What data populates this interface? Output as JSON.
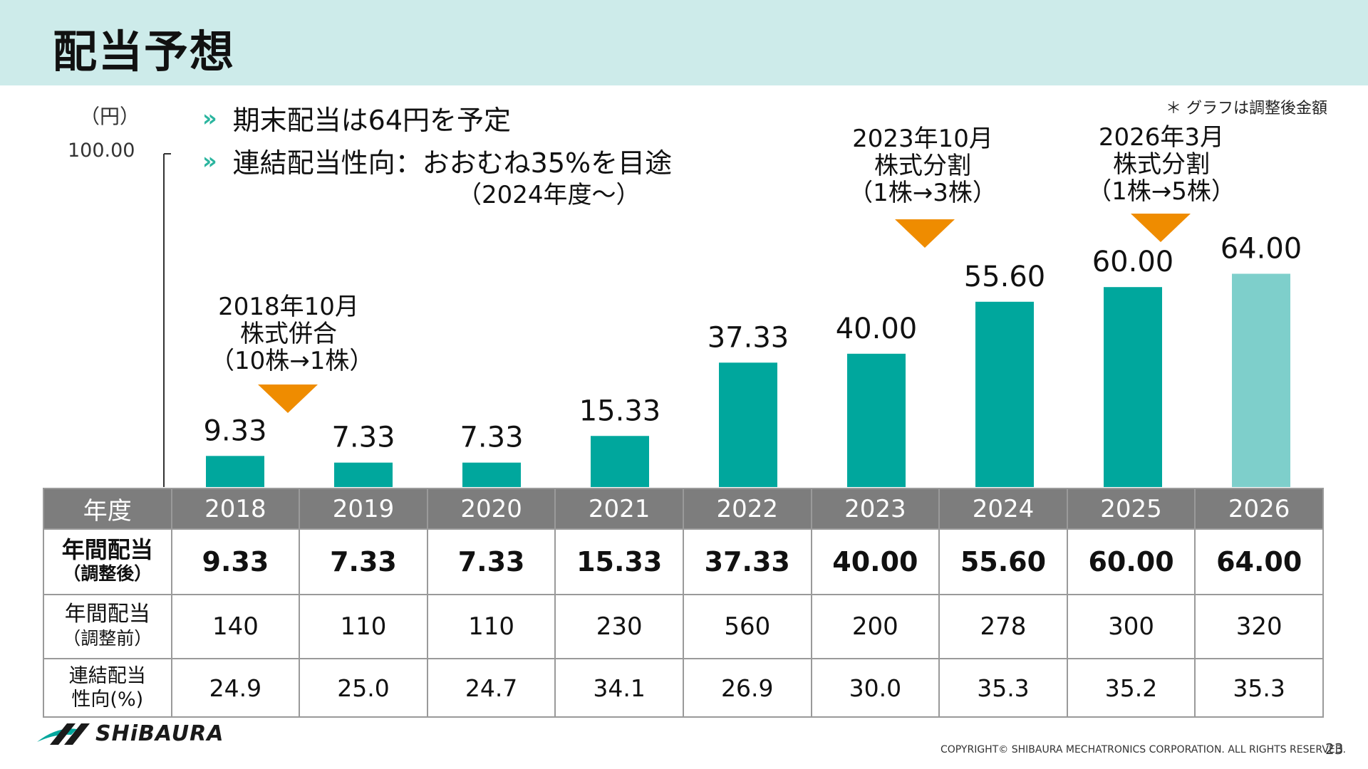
{
  "page": {
    "title": "配当予想",
    "unit": "（円）",
    "ymax_label": "100.00",
    "note": "＊ グラフは調整後金額",
    "bullets": [
      "期末配当は64円を予定",
      "連結配当性向：おおむね35%を目途"
    ],
    "bullet_sub": "（2024年度～）",
    "bullet_marker": "»",
    "annotations": [
      {
        "lines": [
          "2018年10月",
          "株式併合",
          "（10株→1株）"
        ]
      },
      {
        "lines": [
          "2023年10月",
          "株式分割",
          "（1株→3株）"
        ]
      },
      {
        "lines": [
          "2026年3月",
          "株式分割",
          "（1株→5株）"
        ]
      }
    ],
    "logo_text": "SHiBAURA",
    "copyright": "COPYRIGHT© SHIBAURA MECHATRONICS CORPORATION. ALL RIGHTS RESERVED.",
    "page_number": "23",
    "colors": {
      "bar": "#00a79d",
      "bar_forecast": "#7ecfcb",
      "marker": "#ef8c00",
      "header_bg": "#cdebea",
      "table_header": "#7d7d7d"
    }
  },
  "table": {
    "header_label": "年度",
    "row1_label": [
      "年間配当",
      "（調整後）"
    ],
    "row2_label": [
      "年間配当",
      "（調整前）"
    ],
    "row3_label": [
      "連結配当",
      "性向(%)"
    ],
    "row1_values": [
      "9.33",
      "7.33",
      "7.33",
      "15.33",
      "37.33",
      "40.00",
      "55.60",
      "60.00",
      "64.00"
    ],
    "row2_values": [
      "140",
      "110",
      "110",
      "230",
      "560",
      "200",
      "278",
      "300",
      "320"
    ],
    "row3_values": [
      "24.9",
      "25.0",
      "24.7",
      "34.1",
      "26.9",
      "30.0",
      "35.3",
      "35.2",
      "35.3"
    ]
  },
  "chart_data": {
    "type": "bar",
    "categories": [
      "2018",
      "2019",
      "2020",
      "2021",
      "2022",
      "2023",
      "2024",
      "2025",
      "2026"
    ],
    "values": [
      9.33,
      7.33,
      7.33,
      15.33,
      37.33,
      40.0,
      55.6,
      60.0,
      64.0
    ],
    "value_labels": [
      "9.33",
      "7.33",
      "7.33",
      "15.33",
      "37.33",
      "40.00",
      "55.60",
      "60.00",
      "64.00"
    ],
    "forecast_index": 8,
    "ylim": [
      0,
      100
    ],
    "grid": false
  }
}
